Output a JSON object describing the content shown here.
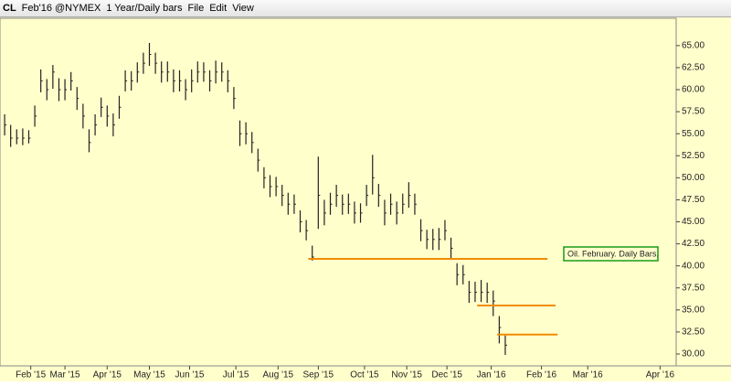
{
  "toolbar": {
    "symbol": "CL",
    "contract": "Feb'16 @NYMEX",
    "period": "1 Year/Daily bars",
    "menu": [
      "File",
      "Edit",
      "View"
    ]
  },
  "chart_data": {
    "type": "ohlc",
    "background": "#ffffcc",
    "color": "#222222",
    "x": [
      0,
      3,
      6,
      9,
      12,
      15,
      18,
      21,
      24,
      27,
      30,
      33,
      36,
      39,
      42,
      45,
      48,
      51,
      54,
      57,
      60,
      63,
      66,
      69,
      72,
      75,
      78,
      81,
      84,
      87,
      90,
      93,
      96,
      99,
      102,
      105,
      108,
      111,
      114,
      117,
      120,
      123,
      126,
      129,
      132,
      135,
      138,
      141,
      144,
      147,
      150,
      153,
      156,
      159,
      162,
      165,
      168,
      171,
      174,
      177,
      180,
      183,
      186,
      189,
      192,
      195,
      198,
      201,
      204,
      207,
      210,
      213,
      216,
      219,
      222,
      225,
      228,
      231,
      234,
      237,
      240,
      243,
      246,
      249
    ],
    "series": [
      {
        "name": "CL",
        "color": "#222222",
        "high": [
          57.2,
          56.0,
          55.5,
          55.6,
          55.4,
          58.2,
          62.3,
          61.2,
          62.8,
          61.3,
          61.2,
          62.0,
          60.3,
          58.4,
          55.5,
          57.2,
          59.1,
          58.2,
          57.3,
          59.3,
          62.2,
          62.1,
          63.1,
          64.2,
          65.3,
          64.2,
          63.2,
          63.2,
          62.3,
          62.2,
          61.2,
          62.3,
          63.2,
          63.1,
          62.2,
          63.3,
          63.1,
          62.2,
          60.3,
          56.5,
          56.3,
          55.2,
          53.3,
          51.2,
          50.3,
          50.1,
          49.2,
          48.3,
          48.1,
          46.3,
          45.2,
          42.3,
          52.4,
          47.5,
          48.3,
          49.2,
          48.1,
          48.2,
          47.3,
          47.1,
          49.2,
          52.6,
          49.3,
          47.5,
          48.2,
          47.3,
          48.2,
          49.5,
          48.2,
          45.3,
          44.1,
          44.2,
          44.3,
          45.2,
          43.2,
          40.3,
          40.1,
          38.3,
          38.2,
          38.4,
          38.1,
          37.2,
          34.3,
          32.1
        ],
        "low": [
          54.8,
          53.5,
          53.8,
          53.7,
          53.9,
          55.8,
          59.7,
          58.8,
          60.1,
          58.7,
          58.8,
          59.9,
          57.7,
          55.6,
          52.9,
          54.8,
          56.9,
          55.8,
          54.7,
          56.7,
          59.8,
          59.9,
          60.8,
          61.8,
          62.7,
          61.8,
          60.8,
          60.9,
          59.7,
          59.8,
          58.8,
          59.7,
          60.8,
          60.9,
          59.8,
          60.7,
          60.9,
          59.7,
          57.8,
          53.6,
          53.8,
          52.8,
          50.7,
          48.8,
          47.8,
          47.9,
          46.8,
          45.8,
          45.9,
          43.8,
          42.9,
          40.6,
          44.2,
          44.6,
          45.8,
          46.7,
          45.8,
          45.9,
          44.8,
          44.9,
          46.8,
          48.1,
          46.7,
          44.6,
          45.8,
          44.7,
          45.9,
          46.6,
          45.8,
          42.8,
          41.9,
          41.8,
          41.8,
          42.9,
          40.7,
          37.8,
          37.9,
          35.8,
          35.9,
          35.9,
          35.8,
          34.3,
          31.2,
          29.9
        ],
        "close": [
          56.0,
          54.5,
          54.5,
          54.5,
          54.5,
          57.0,
          61.0,
          60.0,
          62.0,
          60.0,
          60.0,
          61.0,
          59.0,
          57.0,
          54.0,
          56.0,
          58.0,
          57.0,
          56.0,
          58.0,
          61.0,
          61.0,
          62.0,
          63.0,
          64.0,
          63.0,
          62.0,
          62.0,
          61.0,
          61.0,
          60.0,
          61.0,
          62.0,
          62.0,
          61.0,
          62.0,
          62.0,
          61.0,
          59.0,
          55.0,
          55.0,
          54.0,
          52.0,
          50.0,
          49.0,
          49.0,
          48.0,
          47.0,
          47.0,
          45.0,
          44.0,
          41.0,
          48.0,
          46.0,
          47.0,
          48.0,
          47.0,
          47.0,
          46.0,
          46.0,
          48.0,
          50.0,
          48.0,
          46.0,
          47.0,
          46.0,
          47.0,
          48.0,
          47.0,
          44.0,
          43.0,
          43.0,
          43.0,
          44.0,
          42.0,
          39.0,
          39.0,
          37.0,
          37.0,
          37.0,
          37.0,
          36.0,
          33.0,
          31.0
        ]
      }
    ],
    "xlim": [
      -2.3,
      334
    ],
    "xticks": [
      {
        "value": 13,
        "label": "Feb '15"
      },
      {
        "value": 30,
        "label": "Mar '15"
      },
      {
        "value": 51,
        "label": "Apr '15"
      },
      {
        "value": 72,
        "label": "May '15"
      },
      {
        "value": 92,
        "label": "Jun '15"
      },
      {
        "value": 115,
        "label": "Jul '15"
      },
      {
        "value": 136,
        "label": "Aug '15"
      },
      {
        "value": 156,
        "label": "Sep '15"
      },
      {
        "value": 179,
        "label": "Oct '15"
      },
      {
        "value": 200,
        "label": "Nov '15"
      },
      {
        "value": 220,
        "label": "Dec '15"
      },
      {
        "value": 242,
        "label": "Jan '16"
      },
      {
        "value": 267,
        "label": "Feb '16"
      },
      {
        "value": 290,
        "label": "Mar '16"
      },
      {
        "value": 326,
        "label": "Apr '16"
      }
    ],
    "ylim": [
      28.65,
      68.1
    ],
    "yticks": [
      {
        "value": 30,
        "label": "30.00"
      },
      {
        "value": 32.5,
        "label": "32.50"
      },
      {
        "value": 35,
        "label": "35.00"
      },
      {
        "value": 37.5,
        "label": "37.50"
      },
      {
        "value": 40,
        "label": "40.00"
      },
      {
        "value": 42.5,
        "label": "42.50"
      },
      {
        "value": 45,
        "label": "45.00"
      },
      {
        "value": 47.5,
        "label": "47.50"
      },
      {
        "value": 50,
        "label": "50.00"
      },
      {
        "value": 52.5,
        "label": "52.50"
      },
      {
        "value": 55,
        "label": "55.00"
      },
      {
        "value": 57.5,
        "label": "57.50"
      },
      {
        "value": 60,
        "label": "60.00"
      },
      {
        "value": 62.5,
        "label": "62.50"
      },
      {
        "value": 65,
        "label": "65.00"
      }
    ],
    "levels": [
      {
        "y": 40.8,
        "x": [
          151,
          270
        ],
        "color": "#f08c00"
      },
      {
        "y": 35.5,
        "x": [
          235,
          274
        ],
        "color": "#f08c00"
      },
      {
        "y": 32.2,
        "x": [
          245,
          275
        ],
        "color": "#f08c00"
      }
    ],
    "annotation": {
      "text": "Oil. February. Daily Bars.",
      "color": "#1a9a1a"
    }
  }
}
